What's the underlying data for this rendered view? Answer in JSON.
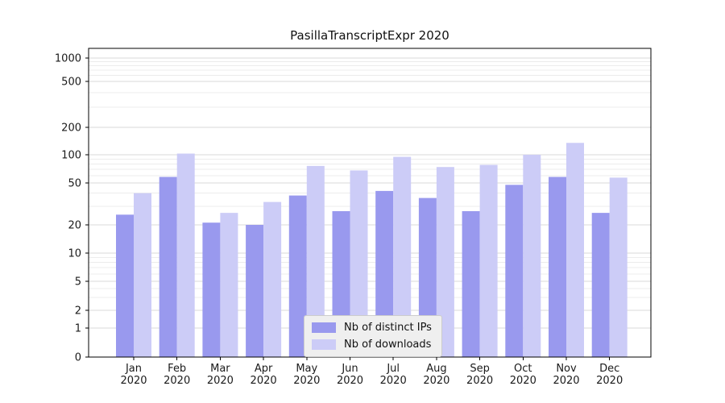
{
  "chart_data": {
    "type": "bar",
    "title": "PasillaTranscriptExpr 2020",
    "categories": [
      "Jan 2020",
      "Feb 2020",
      "Mar 2020",
      "Apr 2020",
      "May 2020",
      "Jun 2020",
      "Jul 2020",
      "Aug 2020",
      "Sep 2020",
      "Oct 2020",
      "Nov 2020",
      "Dec 2020"
    ],
    "series": [
      {
        "name": "Nb of distinct IPs",
        "color": "#9999ee",
        "values": [
          25,
          58,
          21,
          20,
          38,
          27,
          42,
          36,
          27,
          48,
          58,
          26
        ]
      },
      {
        "name": "Nb of downloads",
        "color": "#ccccf7",
        "values": [
          40,
          103,
          26,
          33,
          76,
          68,
          95,
          74,
          78,
          100,
          135,
          57
        ]
      }
    ],
    "yscale": "symlog",
    "ylim": [
      0,
      1000
    ],
    "y_ticks": [
      0,
      1,
      2,
      5,
      10,
      20,
      50,
      100,
      200,
      500,
      1000
    ],
    "y_minor_ticks": [
      3,
      4,
      6,
      7,
      8,
      9,
      30,
      40,
      60,
      70,
      80,
      90,
      300,
      400,
      600,
      700,
      800,
      900
    ],
    "grid": true,
    "legend_position": "lower center",
    "colors": {
      "grid_major": "#d9d9d9",
      "grid_minor": "#ececec",
      "axis": "#000000",
      "text": "#1a1a1a",
      "legend_bg": "#efefef",
      "legend_border": "#cccccc",
      "background": "#ffffff"
    }
  }
}
